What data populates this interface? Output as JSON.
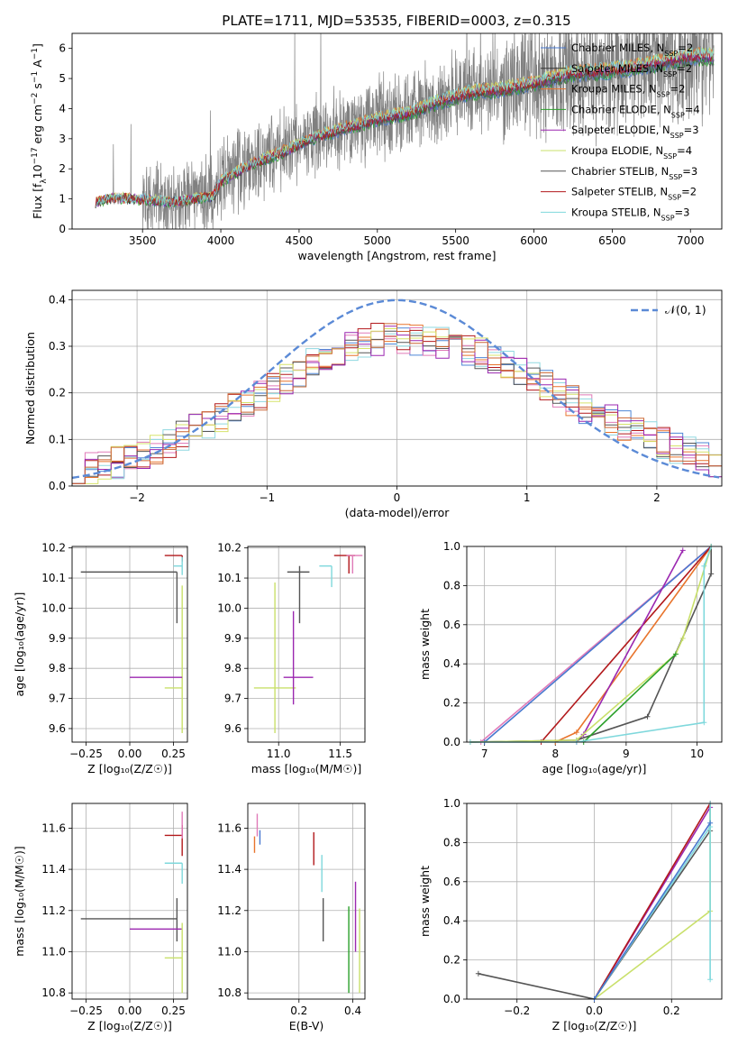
{
  "figure_title": "PLATE=1711, MJD=53535, FIBERID=0003, z=0.315",
  "legend_entries": [
    {
      "name": "Chabrier MILES, N",
      "sub": "SSP",
      "suffix": "=2",
      "color": "#4878cf"
    },
    {
      "name": "Salpeter MILES, N",
      "sub": "SSP",
      "suffix": "=2",
      "color": "#333333"
    },
    {
      "name": "Kroupa MILES, N",
      "sub": "SSP",
      "suffix": "=2",
      "color": "#e8742c"
    },
    {
      "name": "Chabrier ELODIE, N",
      "sub": "SSP",
      "suffix": "=4",
      "color": "#2ca02c"
    },
    {
      "name": "Salpeter ELODIE, N",
      "sub": "SSP",
      "suffix": "=3",
      "color": "#9b27b0"
    },
    {
      "name": "Kroupa ELODIE, N",
      "sub": "SSP",
      "suffix": "=4",
      "color": "#c9e06b"
    },
    {
      "name": "Chabrier STELIB, N",
      "sub": "SSP",
      "suffix": "=3",
      "color": "#555555"
    },
    {
      "name": "Salpeter STELIB, N",
      "sub": "SSP",
      "suffix": "=2",
      "color": "#b2181b"
    },
    {
      "name": "Kroupa STELIB, N",
      "sub": "SSP",
      "suffix": "=3",
      "color": "#7fd8dc"
    }
  ],
  "colors": {
    "data": "#808080",
    "hist": [
      "#4e86d6",
      "#e8742c",
      "#e07ab8",
      "#b2181b",
      "#8fd8e0",
      "#555555",
      "#d6e36b",
      "#9b27b0",
      "#cc6633"
    ],
    "gauss": "#5b8ad6"
  },
  "chart_data": [
    {
      "id": "spectrum",
      "type": "line",
      "title": "PLATE=1711, MJD=53535, FIBERID=0003, z=0.315",
      "xlabel": "wavelength [Angstrom, rest frame]",
      "ylabel": "Flux [f",
      "ylabel_parts": {
        "a": "Flux [f",
        "b": "λ",
        "c": "10",
        "d": "−17",
        "e": " erg cm",
        "f": "−2",
        "g": " s",
        "h": "−1",
        "i": " A",
        "j": "−1",
        "k": "]"
      },
      "xlim": [
        3050,
        7200
      ],
      "ylim": [
        0,
        6.5
      ],
      "xticks": [
        "3500",
        "4000",
        "4500",
        "5000",
        "5500",
        "6000",
        "6500",
        "7000"
      ],
      "xtick_values": [
        3500,
        4000,
        4500,
        5000,
        5500,
        6000,
        6500,
        7000
      ],
      "yticks": [
        "0",
        "1",
        "2",
        "3",
        "4",
        "5",
        "6"
      ],
      "ytick_values": [
        0,
        1,
        2,
        3,
        4,
        5,
        6
      ],
      "model_continuum": [
        [
          3200,
          0.9
        ],
        [
          3300,
          1.05
        ],
        [
          3500,
          1.0
        ],
        [
          3700,
          0.9
        ],
        [
          3800,
          1.0
        ],
        [
          3950,
          1.1
        ],
        [
          4000,
          1.6
        ],
        [
          4200,
          2.2
        ],
        [
          4400,
          2.6
        ],
        [
          4600,
          3.1
        ],
        [
          4800,
          3.4
        ],
        [
          5000,
          3.7
        ],
        [
          5200,
          3.9
        ],
        [
          5400,
          4.3
        ],
        [
          5600,
          4.6
        ],
        [
          5800,
          4.7
        ],
        [
          6000,
          4.9
        ],
        [
          6200,
          5.2
        ],
        [
          6400,
          5.3
        ],
        [
          6600,
          5.4
        ],
        [
          6800,
          5.6
        ],
        [
          7000,
          5.8
        ]
      ]
    },
    {
      "id": "residuals",
      "type": "histogram",
      "xlabel": "(data-model)/error",
      "ylabel": "Normed distribution",
      "xlim": [
        -2.5,
        2.5
      ],
      "ylim": [
        0,
        0.42
      ],
      "xticks": [
        "−2",
        "−1",
        "0",
        "1",
        "2"
      ],
      "xtick_values": [
        -2,
        -1,
        0,
        1,
        2
      ],
      "yticks": [
        "0.0",
        "0.1",
        "0.2",
        "0.3",
        "0.4"
      ],
      "ytick_values": [
        0,
        0.1,
        0.2,
        0.3,
        0.4
      ],
      "legend": "𝒩(0, 1)",
      "bin_width": 0.1,
      "envelope": [
        [
          -2.5,
          0.03
        ],
        [
          -2.0,
          0.06
        ],
        [
          -1.5,
          0.13
        ],
        [
          -1.0,
          0.2
        ],
        [
          -0.6,
          0.27
        ],
        [
          -0.3,
          0.31
        ],
        [
          0.0,
          0.32
        ],
        [
          0.3,
          0.31
        ],
        [
          0.6,
          0.29
        ],
        [
          1.0,
          0.24
        ],
        [
          1.5,
          0.16
        ],
        [
          2.0,
          0.1
        ],
        [
          2.5,
          0.04
        ]
      ]
    },
    {
      "id": "age_vs_Z",
      "type": "errorbar",
      "xlabel": "Z [log₁₀(Z/Z☉)]",
      "ylabel": "age  [log₁₀(age/yr)]",
      "xlim": [
        -0.33,
        0.33
      ],
      "ylim": [
        9.555,
        10.205
      ],
      "xticks": [
        "−0.25",
        "0.00",
        "0.25"
      ],
      "xtick_values": [
        -0.25,
        0,
        0.25
      ],
      "yticks": [
        "9.6",
        "9.7",
        "9.8",
        "9.9",
        "10.0",
        "10.1",
        "10.2"
      ],
      "ytick_values": [
        9.6,
        9.7,
        9.8,
        9.9,
        10.0,
        10.1,
        10.2
      ],
      "points": [
        {
          "x": 0.27,
          "xerr": [
            0.55,
            0.0
          ],
          "y": 10.12,
          "yerr": [
            0.17,
            0.0
          ],
          "color": "#555555"
        },
        {
          "x": 0.3,
          "xerr": [
            0.1,
            0.0
          ],
          "y": 9.735,
          "yerr": [
            0.15,
            0.34
          ],
          "color": "#c9e06b"
        },
        {
          "x": 0.3,
          "xerr": [
            0.3,
            0.0
          ],
          "y": 9.77,
          "yerr": [
            0,
            0
          ],
          "color": "#9b27b0"
        },
        {
          "x": 0.3,
          "xerr": [
            0.1,
            0.0
          ],
          "y": 10.175,
          "yerr": [
            0.02,
            0.0
          ],
          "color": "#b2181b"
        },
        {
          "x": 0.3,
          "xerr": [
            0.05,
            0.0
          ],
          "y": 10.14,
          "yerr": [
            0.03,
            0.03
          ],
          "color": "#7fd8dc"
        }
      ]
    },
    {
      "id": "age_vs_mass",
      "type": "errorbar",
      "xlabel": "mass [log₁₀(M/M☉)]",
      "ylabel": "",
      "xlim": [
        10.75,
        11.7
      ],
      "ylim": [
        9.555,
        10.205
      ],
      "xticks": [
        "11.0",
        "11.5"
      ],
      "xtick_values": [
        11.0,
        11.5
      ],
      "yticks": [
        "9.6",
        "9.7",
        "9.8",
        "9.9",
        "10.0",
        "10.1",
        "10.2"
      ],
      "ytick_values": [
        9.6,
        9.7,
        9.8,
        9.9,
        10.0,
        10.1,
        10.2
      ],
      "points": [
        {
          "x": 10.97,
          "xerr": [
            0.17,
            0.17
          ],
          "y": 9.735,
          "yerr": [
            0.15,
            0.35
          ],
          "color": "#c9e06b"
        },
        {
          "x": 11.12,
          "xerr": [
            0.08,
            0.16
          ],
          "y": 9.77,
          "yerr": [
            0.09,
            0.22
          ],
          "color": "#9b27b0"
        },
        {
          "x": 11.17,
          "xerr": [
            0.1,
            0.08
          ],
          "y": 10.12,
          "yerr": [
            0.17,
            0.02
          ],
          "color": "#555555"
        },
        {
          "x": 11.43,
          "xerr": [
            0.1,
            0.0
          ],
          "y": 10.14,
          "yerr": [
            0.07,
            0.0
          ],
          "color": "#7fd8dc"
        },
        {
          "x": 11.57,
          "xerr": [
            0.12,
            0.05
          ],
          "y": 10.175,
          "yerr": [
            0.06,
            0.0
          ],
          "color": "#b2181b"
        },
        {
          "x": 11.6,
          "xerr": [
            0.05,
            0.08
          ],
          "y": 10.175,
          "yerr": [
            0.06,
            0.0
          ],
          "color": "#e07ab8"
        }
      ]
    },
    {
      "id": "cumulative_age",
      "type": "line",
      "xlabel": "age  [log₁₀(age/yr)]",
      "ylabel": "mass weight",
      "xlim": [
        6.75,
        10.35
      ],
      "ylim": [
        0,
        1
      ],
      "xticks": [
        "7",
        "8",
        "9",
        "10"
      ],
      "xtick_values": [
        7,
        8,
        9,
        10
      ],
      "yticks": [
        "0.0",
        "0.2",
        "0.4",
        "0.6",
        "0.8",
        "1.0"
      ],
      "ytick_values": [
        0,
        0.2,
        0.4,
        0.6,
        0.8,
        1.0
      ],
      "series": [
        {
          "color": "#e07ab8",
          "points": [
            [
              6.95,
              0
            ],
            [
              10.2,
              1.0
            ]
          ]
        },
        {
          "color": "#4878cf",
          "points": [
            [
              7.0,
              0
            ],
            [
              10.2,
              1.0
            ]
          ]
        },
        {
          "color": "#e8742c",
          "points": [
            [
              8.0,
              0
            ],
            [
              8.3,
              0.05
            ],
            [
              10.2,
              1.0
            ]
          ]
        },
        {
          "color": "#b2181b",
          "points": [
            [
              7.8,
              0
            ],
            [
              10.2,
              1.0
            ]
          ]
        },
        {
          "color": "#9b27b0",
          "points": [
            [
              8.3,
              0
            ],
            [
              8.4,
              0.04
            ],
            [
              9.8,
              0.98
            ]
          ]
        },
        {
          "color": "#555555",
          "points": [
            [
              6.8,
              0
            ],
            [
              8.3,
              0.01
            ],
            [
              9.3,
              0.13
            ],
            [
              10.2,
              0.86
            ],
            [
              10.2,
              1.0
            ]
          ]
        },
        {
          "color": "#c9e06b",
          "points": [
            [
              6.8,
              0
            ],
            [
              8.3,
              0.01
            ],
            [
              9.7,
              0.45
            ],
            [
              9.8,
              0.53
            ],
            [
              10.2,
              1.0
            ]
          ]
        },
        {
          "color": "#2ca02c",
          "points": [
            [
              8.4,
              0
            ],
            [
              9.7,
              0.45
            ]
          ]
        },
        {
          "color": "#7fd8dc",
          "points": [
            [
              6.8,
              0
            ],
            [
              8.3,
              0.0
            ],
            [
              10.1,
              0.1
            ],
            [
              10.1,
              0.9
            ],
            [
              10.2,
              1.0
            ]
          ]
        }
      ]
    },
    {
      "id": "mass_vs_Z",
      "type": "errorbar",
      "xlabel": "Z [log₁₀(Z/Z☉)]",
      "ylabel": "mass [log₁₀(M/M☉)]",
      "xlim": [
        -0.33,
        0.33
      ],
      "ylim": [
        10.77,
        11.72
      ],
      "xticks": [
        "−0.25",
        "0.00",
        "0.25"
      ],
      "xtick_values": [
        -0.25,
        0,
        0.25
      ],
      "yticks": [
        "10.8",
        "11.0",
        "11.2",
        "11.4",
        "11.6"
      ],
      "ytick_values": [
        10.8,
        11.0,
        11.2,
        11.4,
        11.6
      ],
      "points": [
        {
          "x": 0.27,
          "xerr": [
            0.55,
            0.0
          ],
          "y": 11.16,
          "yerr": [
            0.11,
            0.1
          ],
          "color": "#555555"
        },
        {
          "x": 0.3,
          "xerr": [
            0.3,
            0.0
          ],
          "y": 11.11,
          "yerr": [
            0,
            0
          ],
          "color": "#9b27b0"
        },
        {
          "x": 0.3,
          "xerr": [
            0.1,
            0.0
          ],
          "y": 10.97,
          "yerr": [
            0.17,
            0.17
          ],
          "color": "#c9e06b"
        },
        {
          "x": 0.3,
          "xerr": [
            0.1,
            0.0
          ],
          "y": 11.565,
          "yerr": [
            0.1,
            0.05
          ],
          "color": "#b2181b"
        },
        {
          "x": 0.3,
          "xerr": [
            0.1,
            0.0
          ],
          "y": 11.43,
          "yerr": [
            0.1,
            0.0
          ],
          "color": "#7fd8dc"
        },
        {
          "x": 0.3,
          "xerr": [
            0.0,
            0.0
          ],
          "y": 11.6,
          "yerr": [
            0.05,
            0.08
          ],
          "color": "#e07ab8"
        }
      ]
    },
    {
      "id": "mass_vs_ebv",
      "type": "errorbar",
      "xlabel": "E(B-V)",
      "ylabel": "",
      "xlim": [
        0.01,
        0.445
      ],
      "ylim": [
        10.77,
        11.72
      ],
      "xticks": [
        "0.2",
        "0.4"
      ],
      "xtick_values": [
        0.2,
        0.4
      ],
      "yticks": [
        "10.8",
        "11.0",
        "11.2",
        "11.4",
        "11.6"
      ],
      "ytick_values": [
        10.8,
        11.0,
        11.2,
        11.4,
        11.6
      ],
      "points": [
        {
          "x": 0.035,
          "xerr": [
            0,
            0
          ],
          "y": 11.52,
          "yerr": [
            0.04,
            0.04
          ],
          "color": "#e8742c"
        },
        {
          "x": 0.045,
          "xerr": [
            0,
            0
          ],
          "y": 11.6,
          "yerr": [
            0.04,
            0.07
          ],
          "color": "#e07ab8"
        },
        {
          "x": 0.055,
          "xerr": [
            0,
            0
          ],
          "y": 11.55,
          "yerr": [
            0.03,
            0.04
          ],
          "color": "#4878cf"
        },
        {
          "x": 0.255,
          "xerr": [
            0,
            0
          ],
          "y": 11.5,
          "yerr": [
            0.08,
            0.08
          ],
          "color": "#b2181b"
        },
        {
          "x": 0.285,
          "xerr": [
            0,
            0
          ],
          "y": 11.38,
          "yerr": [
            0.09,
            0.09
          ],
          "color": "#7fd8dc"
        },
        {
          "x": 0.29,
          "xerr": [
            0,
            0
          ],
          "y": 11.15,
          "yerr": [
            0.1,
            0.11
          ],
          "color": "#555555"
        },
        {
          "x": 0.385,
          "xerr": [
            0,
            0
          ],
          "y": 11.0,
          "yerr": [
            0.2,
            0.22
          ],
          "color": "#2ca02c"
        },
        {
          "x": 0.41,
          "xerr": [
            0,
            0
          ],
          "y": 11.12,
          "yerr": [
            0.12,
            0.22
          ],
          "color": "#9b27b0"
        },
        {
          "x": 0.425,
          "xerr": [
            0,
            0
          ],
          "y": 11.0,
          "yerr": [
            0.2,
            0.21
          ],
          "color": "#c9e06b"
        }
      ]
    },
    {
      "id": "cumulative_Z",
      "type": "line",
      "xlabel": "Z [log₁₀(Z/Z☉)]",
      "ylabel": "mass weight",
      "xlim": [
        -0.33,
        0.33
      ],
      "ylim": [
        0,
        1
      ],
      "xticks": [
        "−0.2",
        "0.0",
        "0.2"
      ],
      "xtick_values": [
        -0.2,
        0,
        0.2
      ],
      "yticks": [
        "0.0",
        "0.2",
        "0.4",
        "0.6",
        "0.8",
        "1.0"
      ],
      "ytick_values": [
        0,
        0.2,
        0.4,
        0.6,
        0.8,
        1.0
      ],
      "series": [
        {
          "color": "#555555",
          "points": [
            [
              -0.3,
              0.13
            ],
            [
              0.0,
              0.0
            ],
            [
              0.3,
              0.86
            ],
            [
              0.3,
              1.0
            ]
          ]
        },
        {
          "color": "#c9e06b",
          "points": [
            [
              0.0,
              0.0
            ],
            [
              0.3,
              0.45
            ],
            [
              0.3,
              1.0
            ]
          ]
        },
        {
          "color": "#9b27b0",
          "points": [
            [
              0.0,
              0.0
            ],
            [
              0.3,
              0.98
            ],
            [
              0.3,
              1.0
            ]
          ]
        },
        {
          "color": "#b2181b",
          "points": [
            [
              0.0,
              0.0
            ],
            [
              0.3,
              1.0
            ]
          ]
        },
        {
          "color": "#7fd8dc",
          "points": [
            [
              0.0,
              0.0
            ],
            [
              0.3,
              0.88
            ],
            [
              0.3,
              0.1
            ],
            [
              0.3,
              1.0
            ]
          ]
        },
        {
          "color": "#4878cf",
          "points": [
            [
              0.0,
              0.0
            ],
            [
              0.3,
              0.9
            ]
          ]
        }
      ]
    }
  ]
}
